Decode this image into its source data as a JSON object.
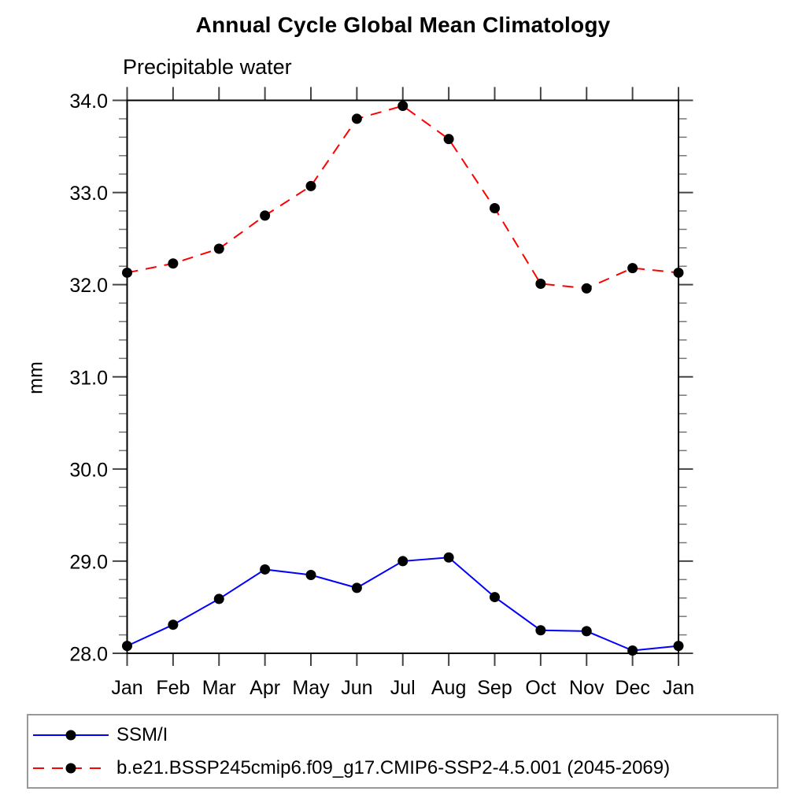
{
  "chart_data": {
    "type": "line",
    "title": "Annual Cycle Global Mean Climatology",
    "subtitle": "Precipitable water",
    "ylabel": "mm",
    "xlabel": "",
    "xticklabels": [
      "Jan",
      "Feb",
      "Mar",
      "Apr",
      "May",
      "Jun",
      "Jul",
      "Aug",
      "Sep",
      "Oct",
      "Nov",
      "Dec",
      "Jan"
    ],
    "ylim": [
      28.0,
      34.0
    ],
    "ytick_major": [
      28.0,
      29.0,
      30.0,
      31.0,
      32.0,
      33.0,
      34.0
    ],
    "ytick_labels": [
      "28.0",
      "29.0",
      "30.0",
      "31.0",
      "32.0",
      "33.0",
      "34.0"
    ],
    "ytick_minor_step": 0.2,
    "grid": false,
    "legend_position": "bottom box, below plot",
    "series": [
      {
        "name": "SSM/I",
        "color": "#0000ff",
        "line_style": "solid",
        "marker": "filled-circle",
        "marker_color": "#000000",
        "values": [
          28.08,
          28.31,
          28.59,
          28.91,
          28.85,
          28.71,
          29.0,
          29.04,
          28.61,
          28.25,
          28.24,
          28.03,
          28.08
        ]
      },
      {
        "name": "b.e21.BSSP245cmip6.f09_g17.CMIP6-SSP2-4.5.001 (2045-2069)",
        "color": "#ff0000",
        "line_style": "dashed",
        "marker": "filled-circle",
        "marker_color": "#000000",
        "values": [
          32.13,
          32.23,
          32.39,
          32.75,
          33.07,
          33.8,
          33.94,
          33.58,
          32.83,
          32.01,
          31.96,
          32.18,
          32.13
        ]
      }
    ]
  }
}
